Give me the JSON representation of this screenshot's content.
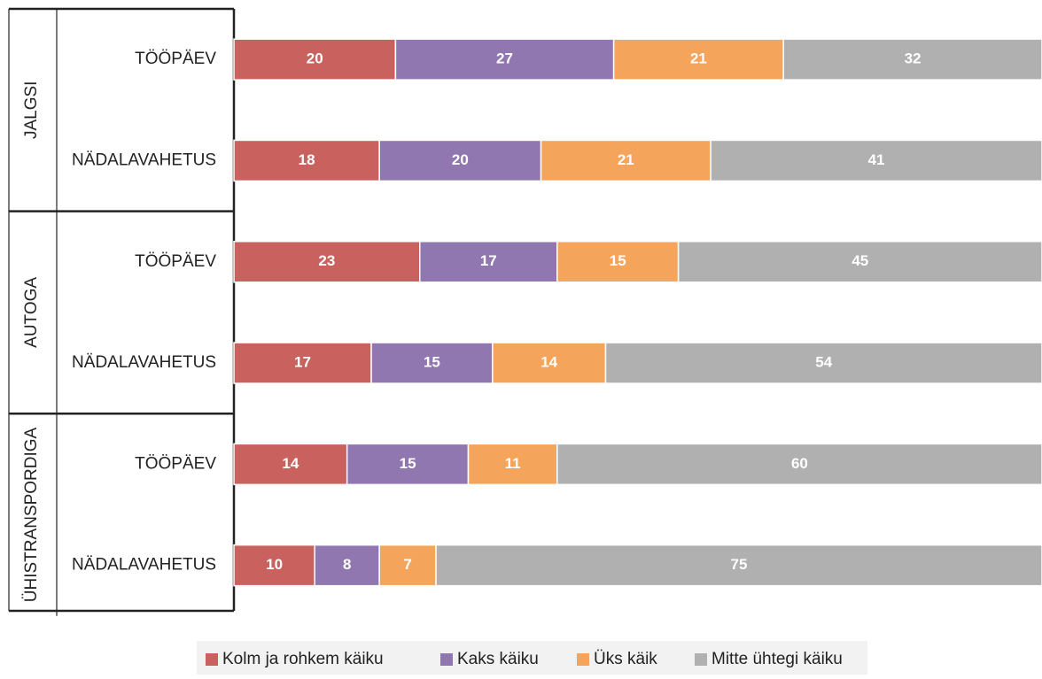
{
  "chart_data": {
    "type": "bar",
    "orientation": "horizontal",
    "stacked": true,
    "title": "",
    "xlabel": "",
    "ylabel": "",
    "xlim": [
      0,
      100
    ],
    "grid": false,
    "legend": "bottom",
    "groups": [
      {
        "name": "JALGSI",
        "rows": [
          {
            "label": "TÖÖPÄEV",
            "values": [
              20,
              27,
              21,
              32
            ]
          },
          {
            "label": "NÄDALAVAHETUS",
            "values": [
              18,
              20,
              21,
              41
            ]
          }
        ]
      },
      {
        "name": "AUTOGA",
        "rows": [
          {
            "label": "TÖÖPÄEV",
            "values": [
              23,
              17,
              15,
              45
            ]
          },
          {
            "label": "NÄDALAVAHETUS",
            "values": [
              17,
              15,
              14,
              54
            ]
          }
        ]
      },
      {
        "name": "ÜHISTRANSPORDIGA",
        "rows": [
          {
            "label": "TÖÖPÄEV",
            "values": [
              14,
              15,
              11,
              60
            ]
          },
          {
            "label": "NÄDALAVAHETUS",
            "values": [
              10,
              8,
              7,
              75
            ]
          }
        ]
      }
    ],
    "series": [
      {
        "name": "Kolm ja rohkem käiku",
        "color": "#c9625e"
      },
      {
        "name": "Kaks käiku",
        "color": "#9077b0"
      },
      {
        "name": "Üks käik",
        "color": "#f5a45c"
      },
      {
        "name": "Mitte ühtegi käiku",
        "color": "#b0b0b0"
      }
    ]
  }
}
